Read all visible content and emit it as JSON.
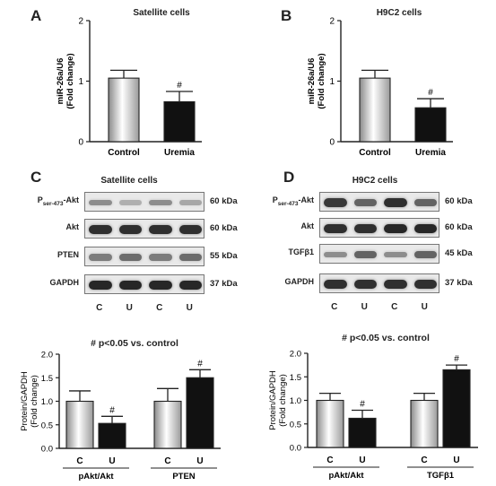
{
  "panels": {
    "A": {
      "letter": "A",
      "title": "Satellite cells"
    },
    "B": {
      "letter": "B",
      "title": "H9C2 cells"
    },
    "C": {
      "letter": "C",
      "title": "Satellite cells"
    },
    "D": {
      "letter": "D",
      "title": "H9C2 cells"
    }
  },
  "blots": {
    "C": {
      "rows": [
        {
          "label_main": "P",
          "label_sub": "ser-473",
          "label_tail": "-Akt",
          "kda": "60 kDa",
          "intensity": [
            0.35,
            0.15,
            0.35,
            0.2
          ]
        },
        {
          "label_main": "Akt",
          "label_sub": "",
          "label_tail": "",
          "kda": "60 kDa",
          "intensity": [
            0.9,
            0.9,
            0.9,
            0.9
          ]
        },
        {
          "label_main": "PTEN",
          "label_sub": "",
          "label_tail": "",
          "kda": "55 kDa",
          "intensity": [
            0.45,
            0.55,
            0.45,
            0.55
          ]
        },
        {
          "label_main": "GAPDH",
          "label_sub": "",
          "label_tail": "",
          "kda": "37 kDa",
          "intensity": [
            0.95,
            0.95,
            0.95,
            0.95
          ]
        }
      ],
      "lanes": [
        "C",
        "U",
        "C",
        "U"
      ]
    },
    "D": {
      "rows": [
        {
          "label_main": "P",
          "label_sub": "ser-473",
          "label_tail": "-Akt",
          "kda": "60 kDa",
          "intensity": [
            0.85,
            0.6,
            0.9,
            0.6
          ]
        },
        {
          "label_main": "Akt",
          "label_sub": "",
          "label_tail": "",
          "kda": "60 kDa",
          "intensity": [
            0.9,
            0.9,
            0.95,
            0.95
          ]
        },
        {
          "label_main": "TGFβ1",
          "label_sub": "",
          "label_tail": "",
          "kda": "45 kDa",
          "intensity": [
            0.35,
            0.6,
            0.35,
            0.6
          ]
        },
        {
          "label_main": "GAPDH",
          "label_sub": "",
          "label_tail": "",
          "kda": "37 kDa",
          "intensity": [
            0.9,
            0.9,
            0.9,
            0.9
          ]
        }
      ],
      "lanes": [
        "C",
        "U",
        "C",
        "U"
      ]
    }
  },
  "notes": {
    "C": "# p<0.05 vs. control",
    "D": "# p<0.05 vs. control"
  },
  "colors": {
    "control": "#ffffff",
    "uremia": "#111111",
    "axis": "#222222"
  },
  "chart_data": [
    {
      "id": "A",
      "type": "bar",
      "title": "Satellite cells",
      "categories": [
        "Control",
        "Uremia"
      ],
      "values": [
        1.05,
        0.66
      ],
      "errors": [
        0.13,
        0.17
      ],
      "significance": [
        "",
        "#"
      ],
      "ylabel": "miR-26a/U6\n(Fold change)",
      "ylabel_lines": [
        "miR-26a/U6",
        "(Fold change)"
      ],
      "ylim": [
        0,
        2
      ],
      "yticks": [
        "0",
        "1",
        "2"
      ]
    },
    {
      "id": "B",
      "type": "bar",
      "title": "H9C2 cells",
      "categories": [
        "Control",
        "Uremia"
      ],
      "values": [
        1.05,
        0.56
      ],
      "errors": [
        0.13,
        0.15
      ],
      "significance": [
        "",
        "#"
      ],
      "ylabel": "miR-26a/U6\n(Fold change)",
      "ylabel_lines": [
        "miR-26a/U6",
        "(Fold change)"
      ],
      "ylim": [
        0,
        2
      ],
      "yticks": [
        "0",
        "1",
        "2"
      ]
    },
    {
      "id": "C",
      "type": "bar",
      "groups": [
        "pAkt/Akt",
        "PTEN"
      ],
      "categories": [
        "C",
        "U"
      ],
      "series": [
        {
          "values": [
            1.0,
            1.0
          ],
          "errors": [
            0.22,
            0.27
          ]
        },
        {
          "values": [
            0.53,
            1.5
          ],
          "errors": [
            0.15,
            0.17
          ]
        }
      ],
      "significance": [
        "#",
        "#"
      ],
      "ylabel": "Protein/GAPDH\n(Fold change)",
      "ylabel_lines": [
        "Protein/GAPDH",
        "(Fold change)"
      ],
      "ylim": [
        0,
        2.0
      ],
      "yticks": [
        "0.0",
        "0.5",
        "1.0",
        "1.5",
        "2.0"
      ]
    },
    {
      "id": "D",
      "type": "bar",
      "groups": [
        "pAkt/Akt",
        "TGFβ1"
      ],
      "categories": [
        "C",
        "U"
      ],
      "series": [
        {
          "values": [
            1.0,
            1.0
          ],
          "errors": [
            0.15,
            0.15
          ]
        },
        {
          "values": [
            0.62,
            1.65
          ],
          "errors": [
            0.17,
            0.1
          ]
        }
      ],
      "significance": [
        "#",
        "#"
      ],
      "ylabel": "Protein/GAPDH\n(Fold change)",
      "ylabel_lines": [
        "Protein/GAPDH",
        "(Fold change)"
      ],
      "ylim": [
        0,
        2.0
      ],
      "yticks": [
        "0.0",
        "0.5",
        "1.0",
        "1.5",
        "2.0"
      ]
    }
  ]
}
